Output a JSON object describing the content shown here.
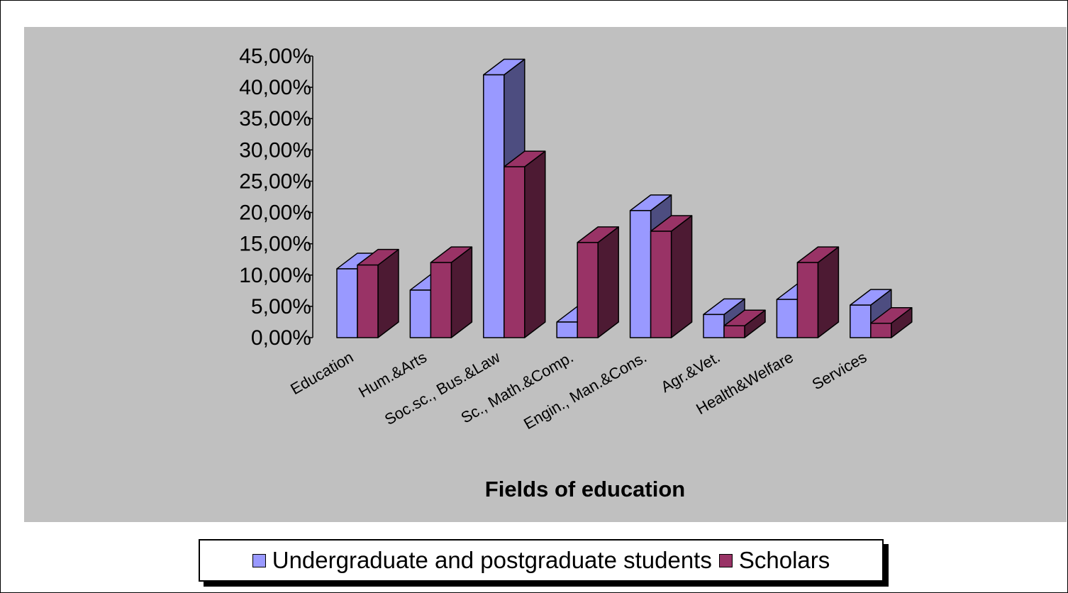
{
  "colors": {
    "background": "#c0c0c0",
    "students_front": "#9999ff",
    "students_side": "#4d4d80",
    "scholars_front": "#993366",
    "scholars_side": "#4d1a33"
  },
  "chart_data": {
    "type": "bar",
    "style": "3d-clustered-column",
    "title": "",
    "xlabel": "Fields of education",
    "ylabel": "",
    "categories": [
      "Education",
      "Hum.&Arts",
      "Soc.sc., Bus.&Law",
      "Sc., Math.&Comp.",
      "Engin., Man.&Cons.",
      "Agr.&Vet.",
      "Health&Welfare",
      "Services"
    ],
    "series": [
      {
        "name": "Undergraduate and postgraduate students",
        "values": [
          11.0,
          7.6,
          42.0,
          2.5,
          20.3,
          3.7,
          6.1,
          5.2
        ]
      },
      {
        "name": "Scholars",
        "values": [
          11.6,
          12.0,
          27.3,
          15.2,
          17.0,
          1.9,
          12.0,
          2.3
        ]
      }
    ],
    "ylim": [
      0,
      45
    ],
    "yticks": [
      "0,00%",
      "5,00%",
      "10,00%",
      "15,00%",
      "20,00%",
      "25,00%",
      "30,00%",
      "35,00%",
      "40,00%",
      "45,00%"
    ],
    "grid": false,
    "legend_position": "bottom"
  }
}
